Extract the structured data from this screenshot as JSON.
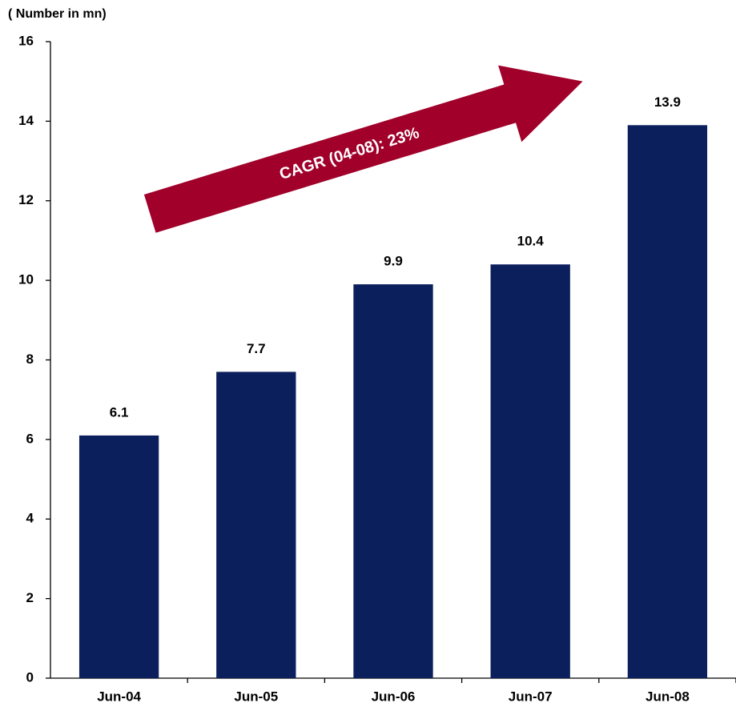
{
  "chart_data": {
    "type": "bar",
    "axis_label": "( Number in mn)",
    "annotation": "CAGR (04-08): 23%",
    "categories": [
      "Jun-04",
      "Jun-05",
      "Jun-06",
      "Jun-07",
      "Jun-08"
    ],
    "values": [
      6.1,
      7.7,
      9.9,
      10.4,
      13.9
    ],
    "color": "#0b1f5c",
    "ylim": [
      0,
      16
    ],
    "yticks": [
      0,
      2,
      4,
      6,
      8,
      10,
      12,
      14,
      16
    ],
    "grid": false
  }
}
